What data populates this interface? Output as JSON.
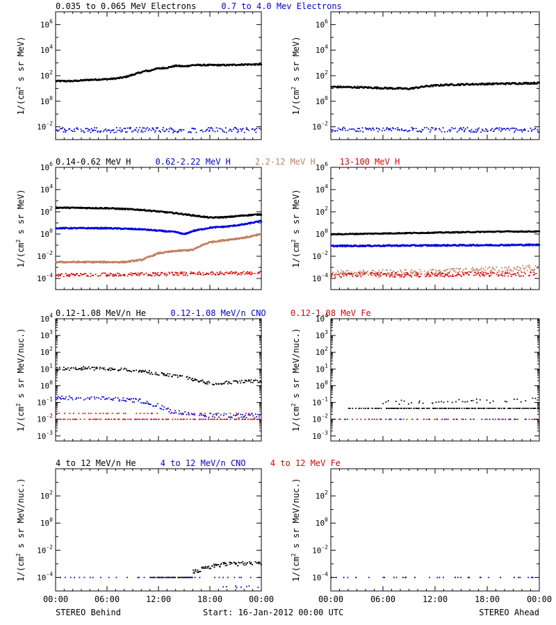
{
  "colors": {
    "black": "#000000",
    "blue": "#0000dd",
    "tan": "#c08060",
    "red": "#e00000"
  },
  "footer": {
    "left": "STEREO Behind",
    "center": "Start: 16-Jan-2012 00:00 UTC",
    "right": "STEREO Ahead"
  },
  "x_ticks": [
    "00:00",
    "06:00",
    "12:00",
    "18:00",
    "00:00"
  ],
  "ylabel_parts": {
    "mev": [
      "1/(cm",
      "2",
      " s sr MeV)"
    ],
    "nuc": [
      "1/(cm",
      "2",
      " s sr MeV/nuc.)"
    ]
  },
  "chart_data": [
    {
      "type": "scatter",
      "panel": "electrons",
      "headers": [
        {
          "text": "0.035 to 0.065 MeV Electrons",
          "color": "black"
        },
        {
          "text": "0.7 to 4.0 Mev Electrons",
          "color": "blue"
        }
      ],
      "ylabel": "mev",
      "yscale": "log",
      "ylim_exp": [
        -3,
        7
      ],
      "yticks_exp": [
        -2,
        0,
        2,
        4,
        6
      ],
      "ytick_style": "sup",
      "xlim_hours": [
        0,
        24
      ],
      "behind": [
        {
          "color": "black",
          "points": [
            [
              0,
              1.6
            ],
            [
              2,
              1.6
            ],
            [
              4,
              1.7
            ],
            [
              6,
              1.75
            ],
            [
              7,
              1.8
            ],
            [
              8,
              1.9
            ],
            [
              9,
              2.1
            ],
            [
              10,
              2.3
            ],
            [
              10.5,
              2.4
            ],
            [
              11,
              2.4
            ],
            [
              11.5,
              2.55
            ],
            [
              13,
              2.65
            ],
            [
              14,
              2.8
            ],
            [
              15,
              2.75
            ],
            [
              16,
              2.85
            ],
            [
              18,
              2.85
            ],
            [
              20,
              2.85
            ],
            [
              22,
              2.9
            ],
            [
              24,
              2.9
            ]
          ],
          "noise": 0.05,
          "n": 300
        },
        {
          "color": "blue",
          "points": [
            [
              0,
              -2.25
            ],
            [
              24,
              -2.25
            ]
          ],
          "noise": 0.2,
          "n": 250,
          "sparse": true
        }
      ],
      "ahead": [
        {
          "color": "black",
          "points": [
            [
              0,
              1.15
            ],
            [
              4,
              1.1
            ],
            [
              6,
              1.05
            ],
            [
              9,
              1.0
            ],
            [
              11,
              1.2
            ],
            [
              13,
              1.3
            ],
            [
              16,
              1.35
            ],
            [
              20,
              1.4
            ],
            [
              24,
              1.45
            ]
          ],
          "noise": 0.06,
          "n": 280
        },
        {
          "color": "blue",
          "points": [
            [
              0,
              -2.2
            ],
            [
              24,
              -2.25
            ]
          ],
          "noise": 0.18,
          "n": 250,
          "sparse": true
        }
      ]
    },
    {
      "type": "scatter",
      "panel": "protons",
      "headers": [
        {
          "text": "0.14-0.62 MeV H",
          "color": "black"
        },
        {
          "text": "0.62-2.22 MeV H",
          "color": "blue"
        },
        {
          "text": "2.2-12 MeV H",
          "color": "tan"
        },
        {
          "text": "13-100 MeV H",
          "color": "red"
        }
      ],
      "ylabel": "mev",
      "yscale": "log",
      "ylim_exp": [
        -5,
        6
      ],
      "yticks_exp": [
        -4,
        -2,
        0,
        2,
        4,
        6
      ],
      "ytick_style": "sup",
      "xlim_hours": [
        0,
        24
      ],
      "behind": [
        {
          "color": "black",
          "points": [
            [
              0,
              2.4
            ],
            [
              6,
              2.35
            ],
            [
              10,
              2.2
            ],
            [
              14,
              1.9
            ],
            [
              16,
              1.7
            ],
            [
              18,
              1.5
            ],
            [
              20,
              1.55
            ],
            [
              22,
              1.7
            ],
            [
              24,
              1.8
            ]
          ],
          "noise": 0.05,
          "n": 320
        },
        {
          "color": "blue",
          "points": [
            [
              0,
              0.55
            ],
            [
              6,
              0.55
            ],
            [
              10,
              0.45
            ],
            [
              14,
              0.2
            ],
            [
              15,
              0.0
            ],
            [
              16,
              0.3
            ],
            [
              18,
              0.6
            ],
            [
              20,
              0.7
            ],
            [
              22,
              0.9
            ],
            [
              24,
              1.2
            ]
          ],
          "noise": 0.05,
          "n": 320
        },
        {
          "color": "tan",
          "points": [
            [
              0,
              -2.5
            ],
            [
              8,
              -2.5
            ],
            [
              10,
              -2.3
            ],
            [
              12,
              -1.7
            ],
            [
              14,
              -1.5
            ],
            [
              16,
              -1.4
            ],
            [
              17,
              -1.0
            ],
            [
              18,
              -0.7
            ],
            [
              20,
              -0.5
            ],
            [
              22,
              -0.3
            ],
            [
              24,
              0.0
            ]
          ],
          "noise": 0.06,
          "n": 320
        },
        {
          "color": "red",
          "points": [
            [
              0,
              -3.7
            ],
            [
              24,
              -3.5
            ]
          ],
          "noise": 0.15,
          "n": 300,
          "sparse": true
        }
      ],
      "ahead": [
        {
          "color": "black",
          "points": [
            [
              0,
              0.0
            ],
            [
              8,
              0.1
            ],
            [
              12,
              0.15
            ],
            [
              16,
              0.2
            ],
            [
              20,
              0.25
            ],
            [
              24,
              0.25
            ]
          ],
          "noise": 0.04,
          "n": 320
        },
        {
          "color": "blue",
          "points": [
            [
              0,
              -1.05
            ],
            [
              12,
              -1.0
            ],
            [
              24,
              -0.95
            ]
          ],
          "noise": 0.06,
          "n": 320
        },
        {
          "color": "tan",
          "points": [
            [
              0,
              -3.5
            ],
            [
              12,
              -3.4
            ],
            [
              24,
              -3.0
            ]
          ],
          "noise": 0.25,
          "n": 300,
          "sparse": true
        },
        {
          "color": "red",
          "points": [
            [
              0,
              -3.7
            ],
            [
              24,
              -3.6
            ]
          ],
          "noise": 0.2,
          "n": 300,
          "sparse": true
        }
      ]
    },
    {
      "type": "scatter",
      "panel": "ions",
      "headers": [
        {
          "text": "0.12-1.08 MeV/n He",
          "color": "black"
        },
        {
          "text": "0.12-1.08 MeV/n CNO",
          "color": "blue"
        },
        {
          "text": "0.12-1.08 MeV Fe",
          "color": "red"
        }
      ],
      "ylabel": "nuc",
      "yscale": "log",
      "ylim_exp": [
        -3.3,
        4
      ],
      "yticks_exp": [
        -3,
        -2,
        -1,
        0,
        1,
        2,
        3,
        4
      ],
      "ytick_style": "power",
      "xlim_hours": [
        0,
        24
      ],
      "behind": [
        {
          "color": "black",
          "points": [
            [
              0,
              1.0
            ],
            [
              3,
              1.05
            ],
            [
              6,
              1.0
            ],
            [
              10,
              0.9
            ],
            [
              12,
              0.7
            ],
            [
              14,
              0.6
            ],
            [
              16,
              0.4
            ],
            [
              18,
              0.15
            ],
            [
              20,
              0.2
            ],
            [
              22,
              0.25
            ],
            [
              24,
              0.3
            ]
          ],
          "noise": 0.1,
          "n": 260,
          "sparse": true
        },
        {
          "color": "blue",
          "points": [
            [
              0,
              -0.7
            ],
            [
              6,
              -0.75
            ],
            [
              10,
              -0.9
            ],
            [
              12,
              -1.2
            ],
            [
              14,
              -1.6
            ],
            [
              18,
              -1.8
            ],
            [
              24,
              -1.8
            ]
          ],
          "noise": 0.12,
          "n": 200,
          "sparse": true
        },
        {
          "color": "red",
          "points": [
            [
              0,
              -2.0
            ],
            [
              24,
              -2.0
            ]
          ],
          "noise": 0.0,
          "n": 140,
          "sparse": true
        },
        {
          "color": "red",
          "points": [
            [
              0,
              -1.65
            ],
            [
              24,
              -1.65
            ]
          ],
          "noise": 0.0,
          "n": 60,
          "sparse": true
        }
      ],
      "ahead": [
        {
          "color": "black",
          "points": [
            [
              2,
              -1.35
            ],
            [
              24,
              -1.35
            ]
          ],
          "noise": 0.0,
          "n": 160,
          "sparse": true
        },
        {
          "color": "black",
          "points": [
            [
              6,
              -1.0
            ],
            [
              24,
              -0.85
            ]
          ],
          "noise": 0.12,
          "n": 60,
          "sparse": true
        },
        {
          "color": "blue",
          "points": [
            [
              0,
              -2.0
            ],
            [
              24,
              -2.0
            ]
          ],
          "noise": 0.0,
          "n": 60,
          "sparse": true
        },
        {
          "color": "red",
          "points": [
            [
              0,
              -2.0
            ],
            [
              24,
              -2.0
            ]
          ],
          "noise": 0.0,
          "n": 50,
          "sparse": true
        }
      ]
    },
    {
      "type": "scatter",
      "panel": "high-energy-ions",
      "headers": [
        {
          "text": "4 to 12 MeV/n He",
          "color": "black"
        },
        {
          "text": "4 to 12 MeV/n CNO",
          "color": "blue"
        },
        {
          "text": "4 to 12 MeV Fe",
          "color": "red"
        }
      ],
      "ylabel": "nuc",
      "yscale": "log",
      "ylim_exp": [
        -5,
        4
      ],
      "yticks_exp": [
        -4,
        -2,
        0,
        2
      ],
      "ytick_style": "sup",
      "xlim_hours": [
        0,
        24
      ],
      "behind": [
        {
          "color": "black",
          "points": [
            [
              11,
              -4.0
            ],
            [
              16,
              -4.0
            ]
          ],
          "noise": 0.0,
          "n": 70,
          "sparse": true
        },
        {
          "color": "black",
          "points": [
            [
              16,
              -3.6
            ],
            [
              18,
              -3.2
            ],
            [
              20,
              -3.0
            ],
            [
              24,
              -2.95
            ]
          ],
          "noise": 0.15,
          "n": 120,
          "sparse": true
        },
        {
          "color": "blue",
          "points": [
            [
              0,
              -4.0
            ],
            [
              24,
              -4.0
            ]
          ],
          "noise": 0.0,
          "n": 40,
          "sparse": true
        },
        {
          "color": "blue",
          "points": [
            [
              19,
              -4.7
            ],
            [
              24,
              -4.7
            ]
          ],
          "noise": 0.1,
          "n": 12,
          "sparse": true
        }
      ],
      "ahead": [
        {
          "color": "black",
          "points": [
            [
              0,
              -4.0
            ],
            [
              24,
              -4.0
            ]
          ],
          "noise": 0.0,
          "n": 25,
          "sparse": true
        },
        {
          "color": "blue",
          "points": [
            [
              0,
              -4.0
            ],
            [
              24,
              -4.0
            ]
          ],
          "noise": 0.0,
          "n": 25,
          "sparse": true
        }
      ]
    }
  ]
}
